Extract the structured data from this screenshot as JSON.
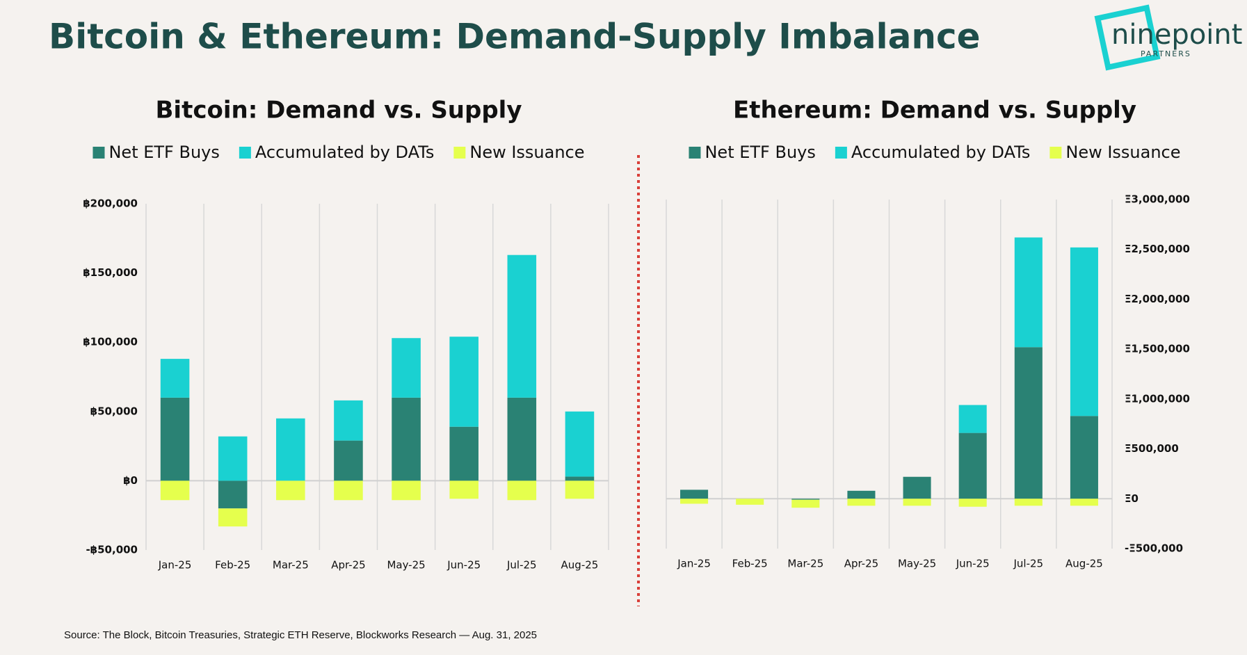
{
  "title": "Bitcoin & Ethereum: Demand-Supply Imbalance",
  "logo": {
    "name": "ninepoint",
    "sub": "PARTNERS"
  },
  "source": "Source: The Block, Bitcoin Treasuries, Strategic ETH Reserve, Blockworks Research — Aug. 31, 2025",
  "chart_data": [
    {
      "type": "stacked_bar",
      "title": "Bitcoin: Demand vs. Supply",
      "categories": [
        "Jan-25",
        "Feb-25",
        "Mar-25",
        "Apr-25",
        "May-25",
        "Jun-25",
        "Jul-25",
        "Aug-25"
      ],
      "series": [
        {
          "name": "Net ETF Buys",
          "color": "#2a8274",
          "values": [
            60000,
            -20000,
            0,
            29000,
            60000,
            39000,
            60000,
            3000
          ]
        },
        {
          "name": "Accumulated by DATs",
          "color": "#1ad1d1",
          "values": [
            28000,
            32000,
            45000,
            29000,
            43000,
            65000,
            103000,
            47000
          ]
        },
        {
          "name": "New Issuance",
          "color": "#e5ff4d",
          "values": [
            -14000,
            -13000,
            -14000,
            -14000,
            -14000,
            -13000,
            -14000,
            -13000
          ]
        }
      ],
      "ylim": [
        -50000,
        200000
      ],
      "yticks": [
        {
          "value": -50000,
          "label": "-฿50,000"
        },
        {
          "value": 0,
          "label": "฿0"
        },
        {
          "value": 50000,
          "label": "฿50,000"
        },
        {
          "value": 100000,
          "label": "฿100,000"
        },
        {
          "value": 150000,
          "label": "฿150,000"
        },
        {
          "value": 200000,
          "label": "฿200,000"
        }
      ],
      "yaxis_position": "left",
      "legend": "top"
    },
    {
      "type": "stacked_bar",
      "title": "Ethereum: Demand vs. Supply",
      "categories": [
        "Jan-25",
        "Feb-25",
        "Mar-25",
        "Apr-25",
        "May-25",
        "Jun-25",
        "Jul-25",
        "Aug-25"
      ],
      "series": [
        {
          "name": "Net ETF Buys",
          "color": "#2a8274",
          "values": [
            90000,
            0,
            -10000,
            80000,
            220000,
            660000,
            1520000,
            830000
          ]
        },
        {
          "name": "Accumulated by DATs",
          "color": "#1ad1d1",
          "values": [
            0,
            0,
            0,
            0,
            0,
            280000,
            1100000,
            1690000
          ]
        },
        {
          "name": "New Issuance",
          "color": "#e5ff4d",
          "values": [
            -50000,
            -60000,
            -80000,
            -70000,
            -70000,
            -80000,
            -70000,
            -70000
          ]
        }
      ],
      "ylim": [
        -500000,
        3000000
      ],
      "yticks": [
        {
          "value": -500000,
          "label": "-Ξ500,000"
        },
        {
          "value": 0,
          "label": "Ξ0"
        },
        {
          "value": 500000,
          "label": "Ξ500,000"
        },
        {
          "value": 1000000,
          "label": "Ξ1,000,000"
        },
        {
          "value": 1500000,
          "label": "Ξ1,500,000"
        },
        {
          "value": 2000000,
          "label": "Ξ2,000,000"
        },
        {
          "value": 2500000,
          "label": "Ξ2,500,000"
        },
        {
          "value": 3000000,
          "label": "Ξ3,000,000"
        }
      ],
      "yaxis_position": "right",
      "legend": "top"
    }
  ]
}
